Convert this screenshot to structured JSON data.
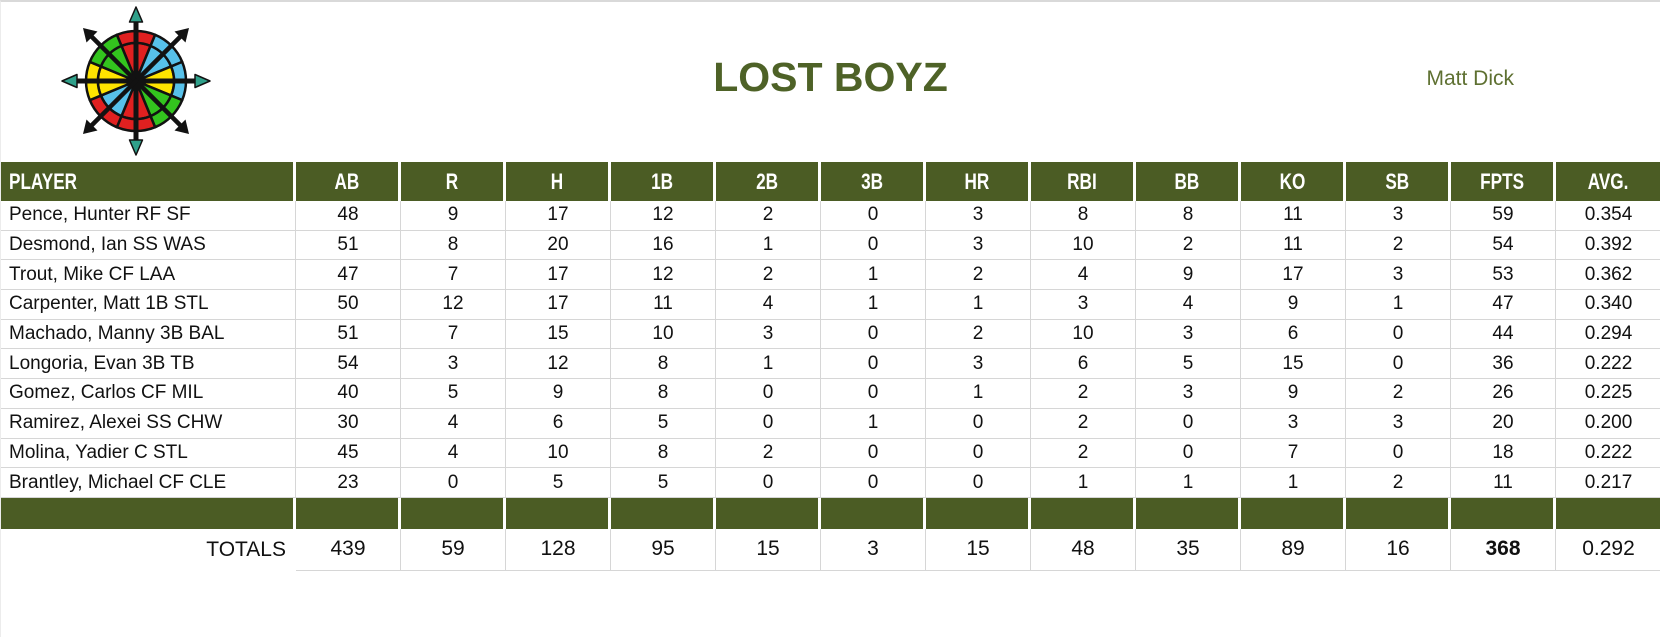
{
  "page": {
    "title": "LOST BOYZ",
    "owner": "Matt Dick"
  },
  "colors": {
    "green": "#4b5c24",
    "title": "#4e6227",
    "owner": "#5e7031",
    "grid": "#d6d6d6",
    "text": "#111111"
  },
  "logo": {
    "icon": "compass-rose-icon",
    "palette": {
      "red": "#e02020",
      "blue": "#57c1ea",
      "green": "#33c41e",
      "yellow": "#ffe400",
      "teal_arrowhead": "#2fa08a",
      "outline": "#121212"
    }
  },
  "table": {
    "columns": [
      "PLAYER",
      "AB",
      "R",
      "H",
      "1B",
      "2B",
      "3B",
      "HR",
      "RBI",
      "BB",
      "KO",
      "SB",
      "FPTS",
      "AVG."
    ],
    "players": [
      {
        "name": "Pence, Hunter RF SF",
        "stats": [
          "48",
          "9",
          "17",
          "12",
          "2",
          "0",
          "3",
          "8",
          "8",
          "11",
          "3",
          "59",
          "0.354"
        ]
      },
      {
        "name": "Desmond, Ian SS WAS",
        "stats": [
          "51",
          "8",
          "20",
          "16",
          "1",
          "0",
          "3",
          "10",
          "2",
          "11",
          "2",
          "54",
          "0.392"
        ]
      },
      {
        "name": "Trout, Mike CF LAA",
        "stats": [
          "47",
          "7",
          "17",
          "12",
          "2",
          "1",
          "2",
          "4",
          "9",
          "17",
          "3",
          "53",
          "0.362"
        ]
      },
      {
        "name": "Carpenter, Matt 1B STL",
        "stats": [
          "50",
          "12",
          "17",
          "11",
          "4",
          "1",
          "1",
          "3",
          "4",
          "9",
          "1",
          "47",
          "0.340"
        ]
      },
      {
        "name": "Machado, Manny 3B BAL",
        "stats": [
          "51",
          "7",
          "15",
          "10",
          "3",
          "0",
          "2",
          "10",
          "3",
          "6",
          "0",
          "44",
          "0.294"
        ]
      },
      {
        "name": "Longoria, Evan 3B TB",
        "stats": [
          "54",
          "3",
          "12",
          "8",
          "1",
          "0",
          "3",
          "6",
          "5",
          "15",
          "0",
          "36",
          "0.222"
        ]
      },
      {
        "name": "Gomez, Carlos CF MIL",
        "stats": [
          "40",
          "5",
          "9",
          "8",
          "0",
          "0",
          "1",
          "2",
          "3",
          "9",
          "2",
          "26",
          "0.225"
        ]
      },
      {
        "name": "Ramirez, Alexei SS CHW",
        "stats": [
          "30",
          "4",
          "6",
          "5",
          "0",
          "1",
          "0",
          "2",
          "0",
          "3",
          "3",
          "20",
          "0.200"
        ]
      },
      {
        "name": "Molina, Yadier C STL",
        "stats": [
          "45",
          "4",
          "10",
          "8",
          "2",
          "0",
          "0",
          "2",
          "0",
          "7",
          "0",
          "18",
          "0.222"
        ]
      },
      {
        "name": "Brantley, Michael CF CLE",
        "stats": [
          "23",
          "0",
          "5",
          "5",
          "0",
          "0",
          "0",
          "1",
          "1",
          "1",
          "2",
          "11",
          "0.217"
        ]
      }
    ],
    "totals_label": "TOTALS",
    "totals": [
      "439",
      "59",
      "128",
      "95",
      "15",
      "3",
      "15",
      "48",
      "35",
      "89",
      "16",
      "368",
      "0.292"
    ],
    "bold_total_column": "FPTS"
  }
}
